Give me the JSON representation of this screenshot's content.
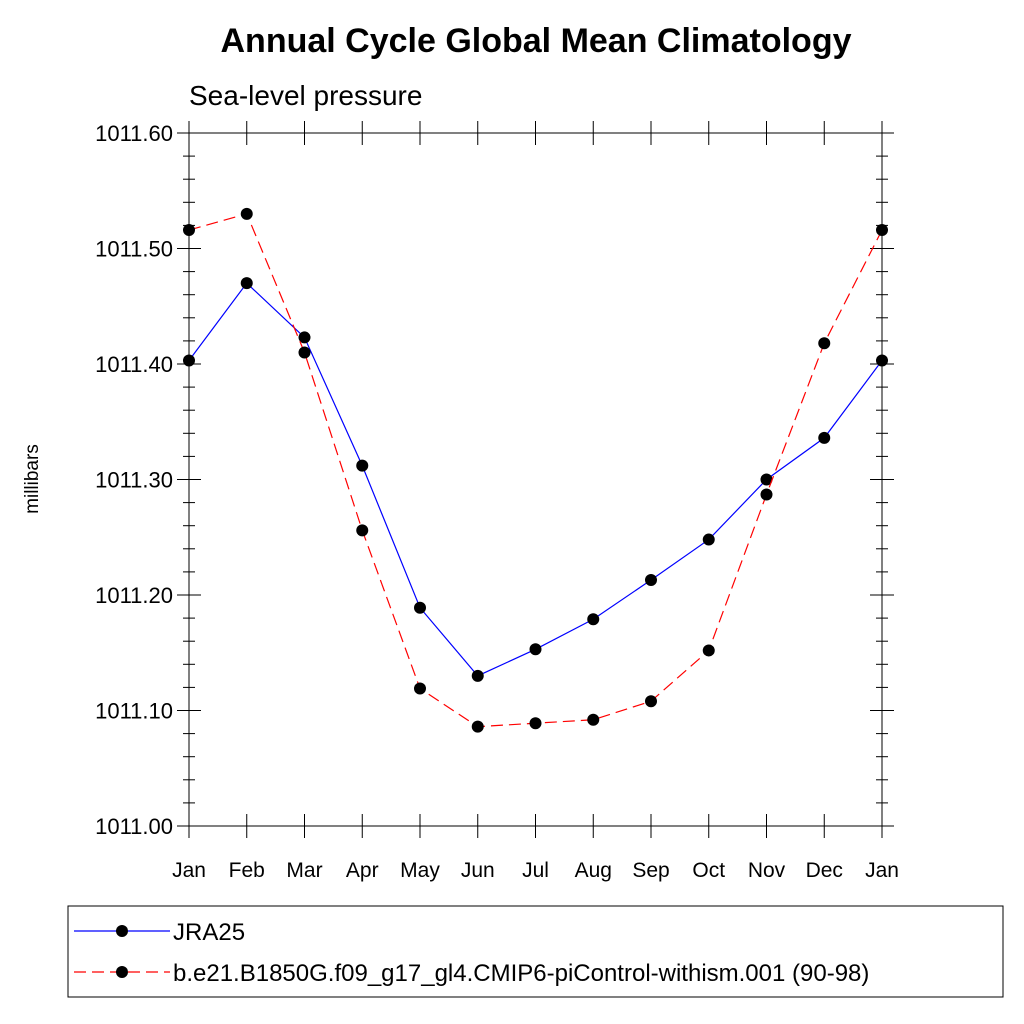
{
  "chart_data": {
    "type": "line",
    "title": "Annual Cycle Global Mean Climatology",
    "subtitle": "Sea-level pressure",
    "xlabel": "",
    "ylabel": "millibars",
    "categories": [
      "Jan",
      "Feb",
      "Mar",
      "Apr",
      "May",
      "Jun",
      "Jul",
      "Aug",
      "Sep",
      "Oct",
      "Nov",
      "Dec",
      "Jan"
    ],
    "ylim": [
      1011.0,
      1011.6
    ],
    "yticks": [
      1011.0,
      1011.1,
      1011.2,
      1011.3,
      1011.4,
      1011.5,
      1011.6
    ],
    "ytick_labels": [
      "1011.00",
      "1011.10",
      "1011.20",
      "1011.30",
      "1011.40",
      "1011.50",
      "1011.60"
    ],
    "legend_position": "bottom",
    "series": [
      {
        "name": "JRA25",
        "color": "#0000ff",
        "line_style": "solid",
        "marker": "filled-circle",
        "values": [
          1011.403,
          1011.47,
          1011.423,
          1011.312,
          1011.189,
          1011.13,
          1011.153,
          1011.179,
          1011.213,
          1011.248,
          1011.3,
          1011.336,
          1011.403
        ]
      },
      {
        "name": "b.e21.B1850G.f09_g17_gl4.CMIP6-piControl-withism.001 (90-98)",
        "color": "#ff0000",
        "line_style": "dashed",
        "marker": "filled-circle",
        "values": [
          1011.516,
          1011.53,
          1011.41,
          1011.256,
          1011.119,
          1011.086,
          1011.089,
          1011.092,
          1011.108,
          1011.152,
          1011.287,
          1011.418,
          1011.516
        ]
      }
    ]
  }
}
